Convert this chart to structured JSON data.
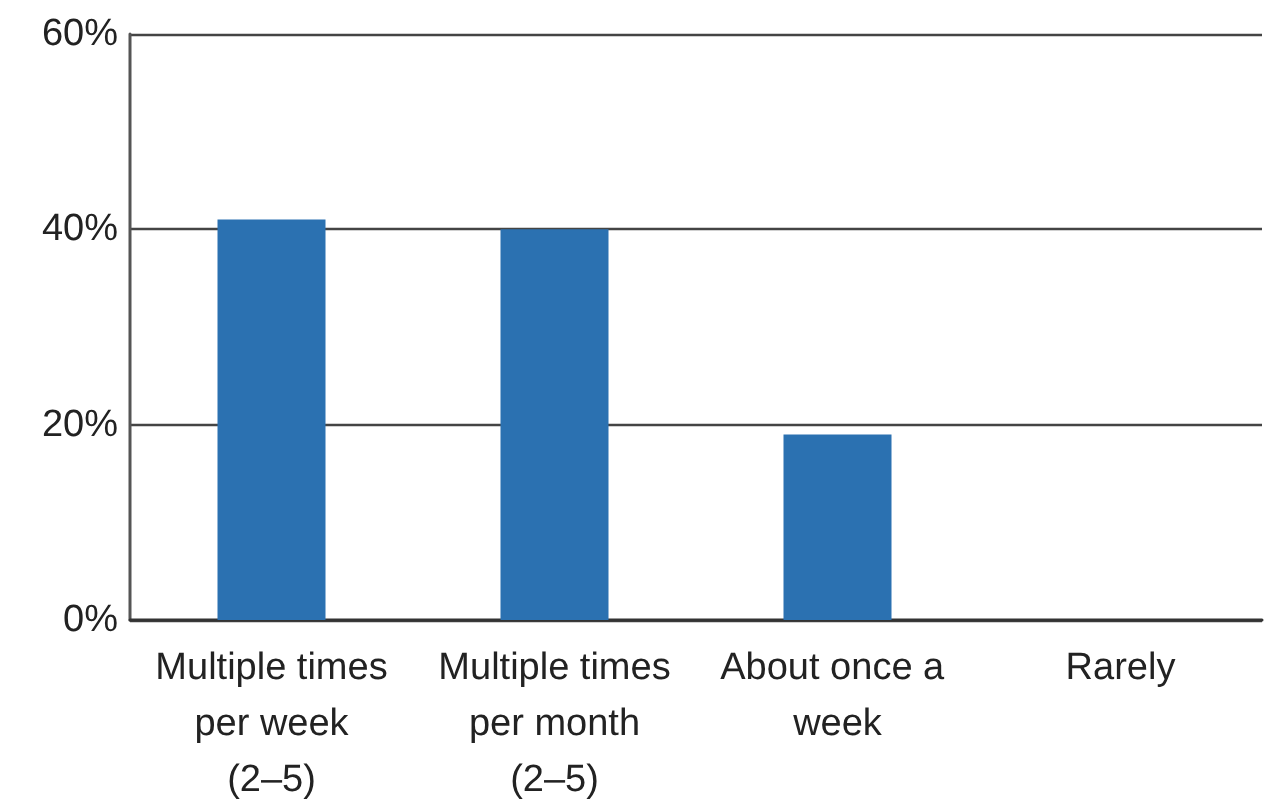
{
  "chart_data": {
    "type": "bar",
    "categories": [
      "Multiple times per week (2–5)",
      "Multiple times per month (2–5)",
      "About once a week",
      "Rarely"
    ],
    "values": [
      41,
      40,
      19,
      0
    ],
    "color": "#2b71b1",
    "ylim": [
      0,
      60
    ],
    "yticks": [
      {
        "value": 0,
        "label": "0%"
      },
      {
        "value": 20,
        "label": "20%"
      },
      {
        "value": 40,
        "label": "40%"
      },
      {
        "value": 60,
        "label": "60%"
      }
    ],
    "grid": "y"
  }
}
